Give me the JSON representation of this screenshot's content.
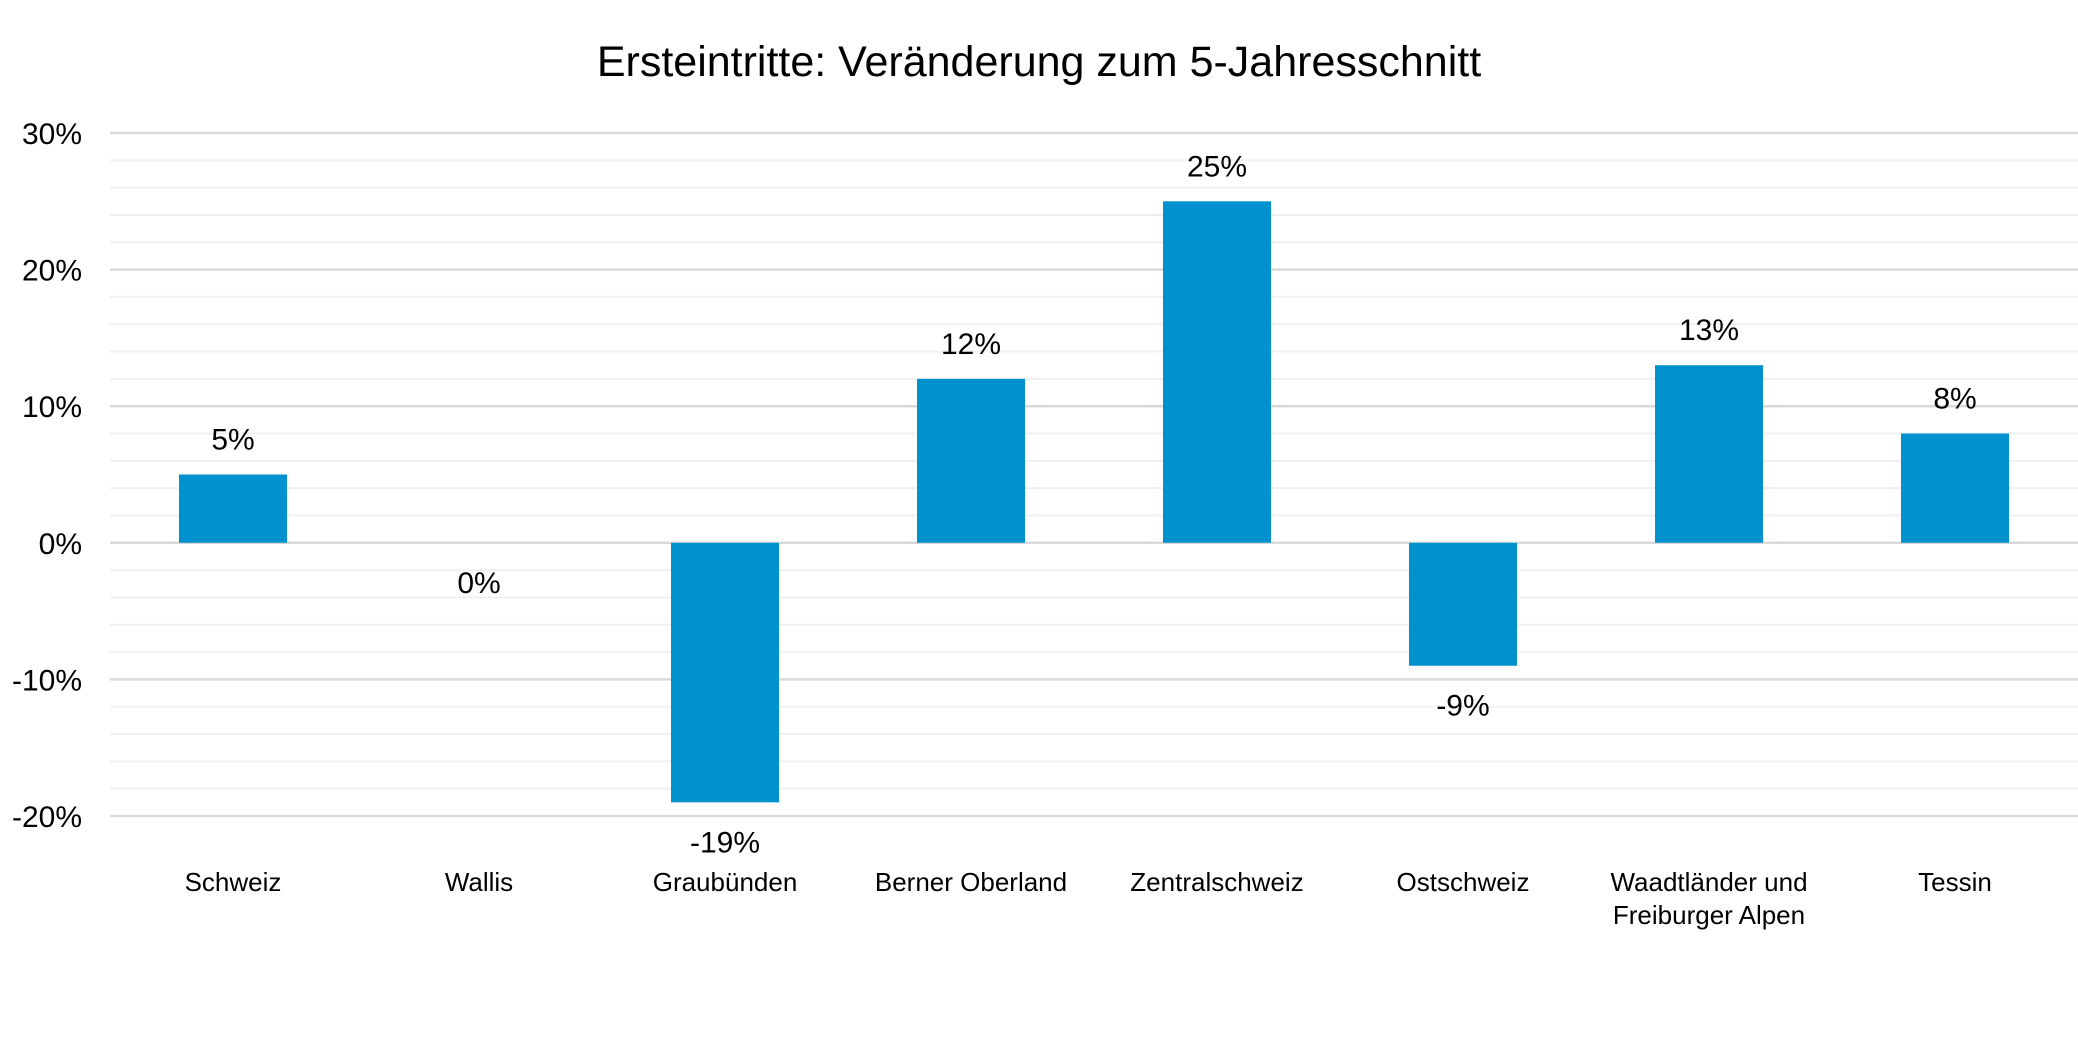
{
  "chart_data": {
    "type": "bar",
    "title": "Ersteintritte: Veränderung zum 5-Jahresschnitt",
    "xlabel": "",
    "ylabel": "",
    "categories": [
      [
        "Schweiz"
      ],
      [
        "Wallis"
      ],
      [
        "Graubünden"
      ],
      [
        "Berner Oberland"
      ],
      [
        "Zentralschweiz"
      ],
      [
        "Ostschweiz"
      ],
      [
        "Waadtländer und",
        "Freiburger Alpen"
      ],
      [
        "Tessin"
      ]
    ],
    "values": [
      5,
      0,
      -19,
      12,
      25,
      -9,
      13,
      8
    ],
    "data_labels": [
      "5%",
      "0%",
      "-19%",
      "12%",
      "25%",
      "-9%",
      "13%",
      "8%"
    ],
    "y_ticks": [
      30,
      20,
      10,
      0,
      -10,
      -20
    ],
    "y_tick_labels": [
      "30%",
      "20%",
      "10%",
      "0%",
      "-10%",
      "-20%"
    ],
    "ylim": [
      -20,
      30
    ],
    "grid": true,
    "minor_grid_step": 2,
    "legend": "none",
    "colors": {
      "bar": "#0092CF",
      "major_grid": "#D9D9D9",
      "minor_grid": "#F0F0F0",
      "text": "#000000"
    }
  }
}
